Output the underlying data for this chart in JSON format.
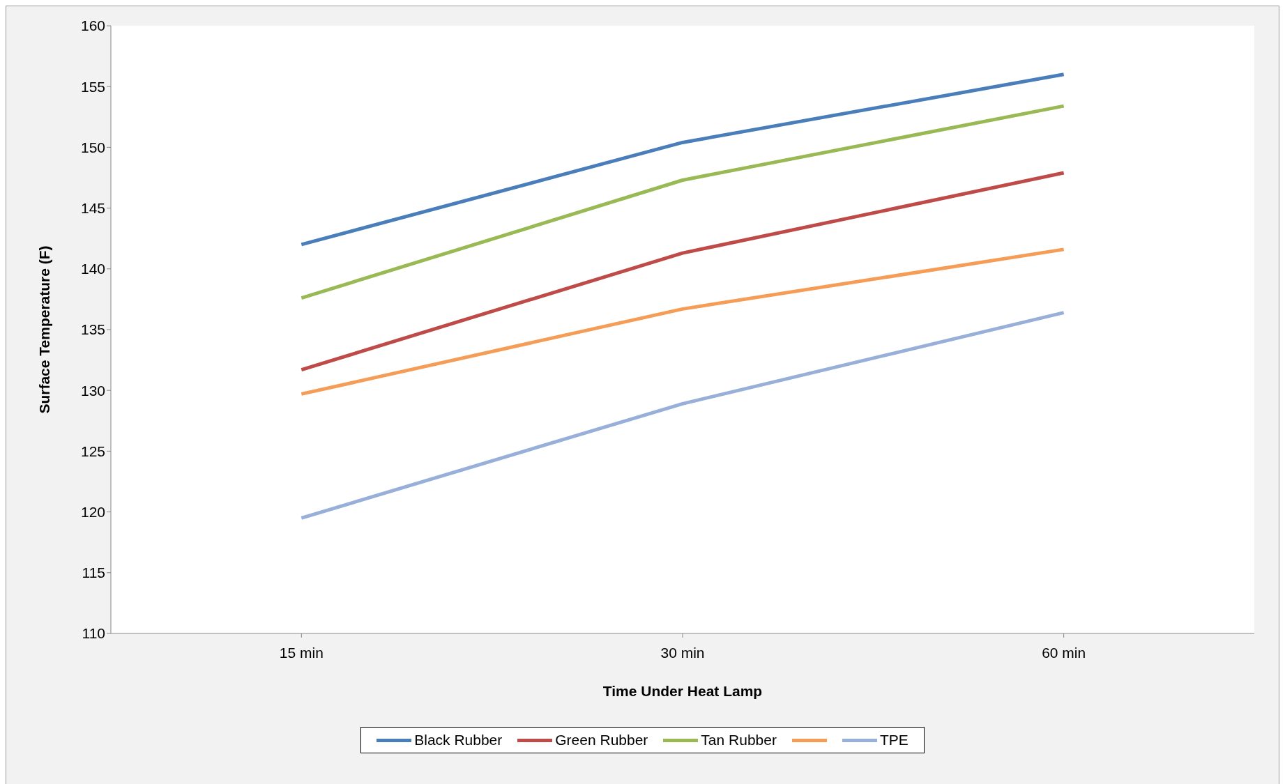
{
  "chart_data": {
    "type": "line",
    "xlabel": "Time Under Heat Lamp",
    "ylabel": "Surface Temperature (F)",
    "categories": [
      "15 min",
      "30 min",
      "60 min"
    ],
    "series": [
      {
        "name": "Black Rubber",
        "color": "#4a7ebb",
        "values": [
          142,
          150.4,
          156
        ]
      },
      {
        "name": "Green Rubber",
        "color": "#be4b48",
        "values": [
          131.7,
          141.3,
          147.9
        ]
      },
      {
        "name": "Tan Rubber",
        "color": "#98b954",
        "values": [
          137.6,
          147.3,
          153.4
        ]
      },
      {
        "color": "#f59d56",
        "values": [
          129.7,
          136.7,
          141.6
        ]
      },
      {
        "name": "TPE",
        "color": "#98b0d9",
        "values": [
          119.5,
          128.9,
          136.4
        ]
      }
    ],
    "ylim": [
      110,
      160
    ],
    "yticks": [
      110,
      115,
      120,
      125,
      130,
      135,
      140,
      145,
      150,
      155,
      160
    ],
    "grid": false,
    "legend": "bottom",
    "marker": "none",
    "line_style": "solid"
  }
}
